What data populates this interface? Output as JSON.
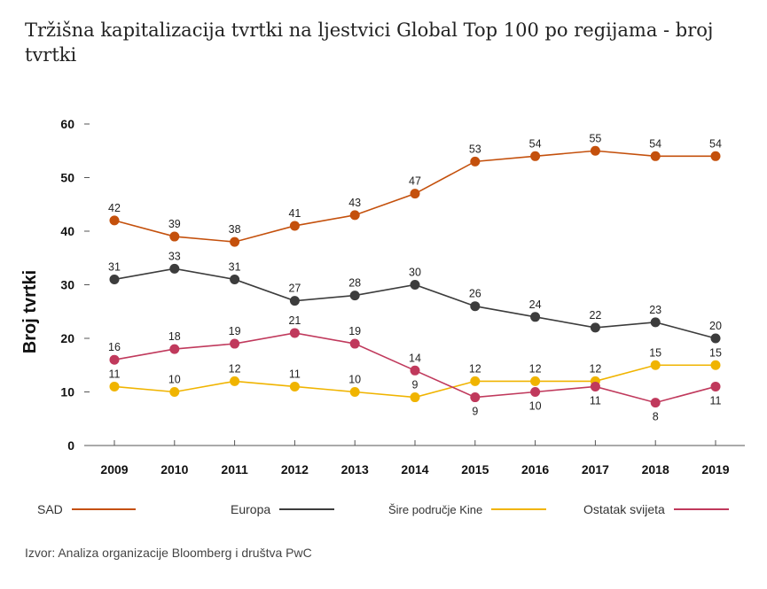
{
  "title": "Tržišna kapitalizacija tvrtki na ljestvici Global Top 100 po regijama - broj tvrtki",
  "source": "Izvor: Analiza organizacije Bloomberg i društva PwC",
  "chart_data": {
    "type": "line",
    "title": "Tržišna kapitalizacija tvrtki na ljestvici Global Top 100 po regijama - broj tvrtki",
    "xlabel": "",
    "ylabel": "Broj tvrtki",
    "ylim": [
      0,
      60
    ],
    "yticks": [
      0,
      10,
      20,
      30,
      40,
      50,
      60
    ],
    "grid": false,
    "legend_position": "bottom",
    "categories": [
      "2009",
      "2010",
      "2011",
      "2012",
      "2013",
      "2014",
      "2015",
      "2016",
      "2017",
      "2018",
      "2019"
    ],
    "series": [
      {
        "name": "SAD",
        "color": "#c4500c",
        "values": [
          42,
          39,
          38,
          41,
          43,
          47,
          53,
          54,
          55,
          54,
          54
        ]
      },
      {
        "name": "Europa",
        "color": "#3c3c3c",
        "values": [
          31,
          33,
          31,
          27,
          28,
          30,
          26,
          24,
          22,
          23,
          20
        ]
      },
      {
        "name": "Šire područje Kine",
        "color": "#f0b400",
        "values": [
          11,
          10,
          12,
          11,
          10,
          9,
          12,
          12,
          12,
          15,
          15
        ]
      },
      {
        "name": "Ostatak svijeta",
        "color": "#c0395c",
        "values": [
          16,
          18,
          19,
          21,
          19,
          14,
          9,
          10,
          11,
          8,
          11
        ]
      }
    ]
  }
}
